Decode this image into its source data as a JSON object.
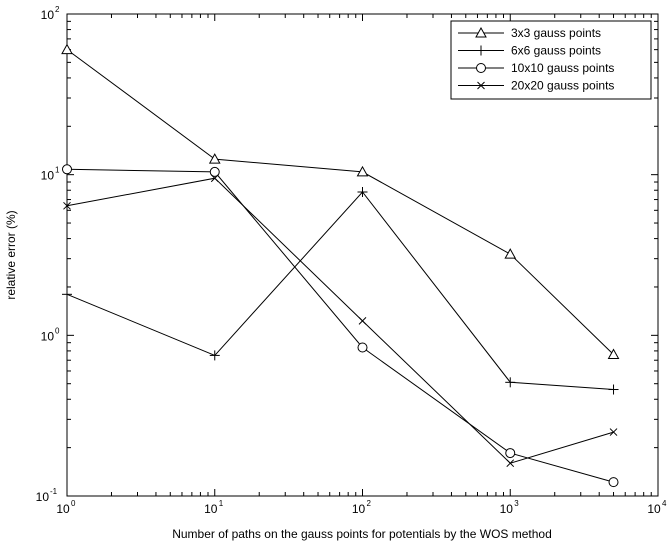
{
  "chart_data": {
    "type": "line",
    "title": "",
    "xlabel": "Number of paths on the gauss points for potentials by the WOS method",
    "ylabel": "relative error (%)",
    "xscale": "log",
    "yscale": "log",
    "xlim": [
      1,
      10000
    ],
    "ylim": [
      0.1,
      100
    ],
    "x_ticks": [
      {
        "base": "10",
        "exp": "0",
        "value": 1
      },
      {
        "base": "10",
        "exp": "1",
        "value": 10
      },
      {
        "base": "10",
        "exp": "2",
        "value": 100
      },
      {
        "base": "10",
        "exp": "3",
        "value": 1000
      },
      {
        "base": "10",
        "exp": "4",
        "value": 10000
      }
    ],
    "y_ticks": [
      {
        "base": "10",
        "exp": "-1",
        "value": 0.1
      },
      {
        "base": "10",
        "exp": "0",
        "value": 1
      },
      {
        "base": "10",
        "exp": "1",
        "value": 10
      },
      {
        "base": "10",
        "exp": "2",
        "value": 100
      }
    ],
    "grid": false,
    "legend_position": "top-right",
    "series": [
      {
        "name": "3x3 gauss points",
        "marker": "triangle",
        "x": [
          1,
          10,
          100,
          1000,
          5000
        ],
        "y": [
          60,
          12.5,
          10.4,
          3.2,
          0.76
        ]
      },
      {
        "name": "6x6 gauss points",
        "marker": "plus",
        "x": [
          1,
          10,
          100,
          1000,
          5000
        ],
        "y": [
          1.8,
          0.75,
          7.8,
          0.51,
          0.46
        ]
      },
      {
        "name": "10x10 gauss points",
        "marker": "circle",
        "x": [
          1,
          10,
          100,
          1000,
          5000
        ],
        "y": [
          10.8,
          10.4,
          0.84,
          0.185,
          0.122
        ]
      },
      {
        "name": "20x20 gauss points",
        "marker": "x",
        "x": [
          1,
          10,
          100,
          1000,
          5000
        ],
        "y": [
          6.4,
          9.5,
          1.23,
          0.16,
          0.25
        ]
      }
    ]
  }
}
